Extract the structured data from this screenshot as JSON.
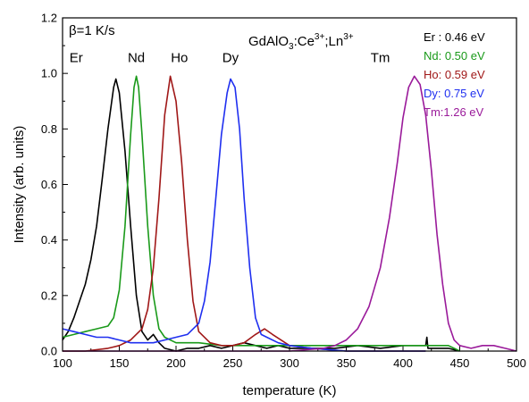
{
  "chart_data": {
    "type": "line",
    "xlabel": "temperature (K)",
    "ylabel": "Intensity (arb. units)",
    "xlim": [
      100,
      500
    ],
    "ylim": [
      0.0,
      1.2
    ],
    "xticks": [
      "100",
      "150",
      "200",
      "250",
      "300",
      "350",
      "400",
      "450",
      "500"
    ],
    "yticks": [
      "0.0",
      "0.2",
      "0.4",
      "0.6",
      "0.8",
      "1.0",
      "1.2"
    ],
    "annotations": {
      "rate_label": "β=1 K/s",
      "compound_main": "GdAlO",
      "compound_sub3": "3",
      "compound_mid": ":Ce",
      "compound_sup1": "3+",
      "compound_mid2": ";Ln",
      "compound_sup2": "3+"
    },
    "legend_position": "top-right",
    "legend": [
      {
        "text": "Er : 0.46 eV",
        "color": "#000000"
      },
      {
        "text": "Nd: 0.50 eV",
        "color": "#1a9a1a"
      },
      {
        "text": "Ho: 0.59 eV",
        "color": "#a01818"
      },
      {
        "text": "Dy: 0.75 eV",
        "color": "#1f2ff0"
      },
      {
        "text": "Tm:1.26 eV",
        "color": "#9a1a9a"
      }
    ],
    "series": [
      {
        "name": "Er",
        "color": "#000000",
        "label_x": 112,
        "label_y": 1.04,
        "points": [
          [
            100,
            0.04
          ],
          [
            105,
            0.07
          ],
          [
            110,
            0.12
          ],
          [
            115,
            0.18
          ],
          [
            120,
            0.24
          ],
          [
            125,
            0.33
          ],
          [
            130,
            0.45
          ],
          [
            135,
            0.62
          ],
          [
            140,
            0.8
          ],
          [
            145,
            0.95
          ],
          [
            147,
            0.98
          ],
          [
            150,
            0.93
          ],
          [
            155,
            0.72
          ],
          [
            160,
            0.45
          ],
          [
            165,
            0.2
          ],
          [
            170,
            0.07
          ],
          [
            175,
            0.04
          ],
          [
            180,
            0.06
          ],
          [
            185,
            0.03
          ],
          [
            190,
            0.01
          ],
          [
            200,
            0.0
          ],
          [
            210,
            0.01
          ],
          [
            220,
            0.01
          ],
          [
            230,
            0.02
          ],
          [
            240,
            0.01
          ],
          [
            250,
            0.02
          ],
          [
            260,
            0.03
          ],
          [
            270,
            0.02
          ],
          [
            280,
            0.01
          ],
          [
            290,
            0.02
          ],
          [
            300,
            0.01
          ],
          [
            320,
            0.01
          ],
          [
            340,
            0.01
          ],
          [
            360,
            0.02
          ],
          [
            380,
            0.01
          ],
          [
            400,
            0.02
          ],
          [
            420,
            0.02
          ],
          [
            421,
            0.05
          ],
          [
            422,
            0.01
          ],
          [
            430,
            0.01
          ],
          [
            440,
            0.01
          ],
          [
            450,
            0.0
          ]
        ]
      },
      {
        "name": "Nd",
        "color": "#1a9a1a",
        "label_x": 165,
        "label_y": 1.04,
        "points": [
          [
            100,
            0.05
          ],
          [
            110,
            0.06
          ],
          [
            120,
            0.07
          ],
          [
            130,
            0.08
          ],
          [
            140,
            0.09
          ],
          [
            145,
            0.12
          ],
          [
            150,
            0.22
          ],
          [
            155,
            0.45
          ],
          [
            160,
            0.78
          ],
          [
            163,
            0.95
          ],
          [
            165,
            0.99
          ],
          [
            167,
            0.95
          ],
          [
            170,
            0.78
          ],
          [
            175,
            0.45
          ],
          [
            180,
            0.2
          ],
          [
            185,
            0.08
          ],
          [
            190,
            0.05
          ],
          [
            200,
            0.03
          ],
          [
            220,
            0.03
          ],
          [
            240,
            0.02
          ],
          [
            260,
            0.02
          ],
          [
            280,
            0.02
          ],
          [
            300,
            0.02
          ],
          [
            320,
            0.02
          ],
          [
            340,
            0.02
          ],
          [
            360,
            0.02
          ],
          [
            380,
            0.02
          ],
          [
            400,
            0.02
          ],
          [
            420,
            0.02
          ],
          [
            440,
            0.02
          ],
          [
            450,
            0.0
          ]
        ]
      },
      {
        "name": "Ho",
        "color": "#a01818",
        "label_x": 203,
        "label_y": 1.04,
        "points": [
          [
            100,
            0.0
          ],
          [
            120,
            0.0
          ],
          [
            140,
            0.01
          ],
          [
            150,
            0.02
          ],
          [
            160,
            0.04
          ],
          [
            170,
            0.08
          ],
          [
            175,
            0.15
          ],
          [
            180,
            0.3
          ],
          [
            185,
            0.55
          ],
          [
            190,
            0.85
          ],
          [
            195,
            0.99
          ],
          [
            200,
            0.9
          ],
          [
            205,
            0.68
          ],
          [
            210,
            0.4
          ],
          [
            215,
            0.18
          ],
          [
            220,
            0.07
          ],
          [
            230,
            0.03
          ],
          [
            240,
            0.02
          ],
          [
            250,
            0.02
          ],
          [
            260,
            0.03
          ],
          [
            270,
            0.06
          ],
          [
            278,
            0.08
          ],
          [
            285,
            0.06
          ],
          [
            300,
            0.02
          ],
          [
            320,
            0.01
          ],
          [
            350,
            0.0
          ],
          [
            380,
            0.0
          ],
          [
            420,
            0.0
          ]
        ]
      },
      {
        "name": "Dy",
        "color": "#1f2ff0",
        "label_x": 248,
        "label_y": 1.04,
        "points": [
          [
            100,
            0.08
          ],
          [
            110,
            0.07
          ],
          [
            120,
            0.06
          ],
          [
            130,
            0.05
          ],
          [
            140,
            0.05
          ],
          [
            150,
            0.04
          ],
          [
            160,
            0.03
          ],
          [
            170,
            0.03
          ],
          [
            180,
            0.03
          ],
          [
            190,
            0.04
          ],
          [
            200,
            0.05
          ],
          [
            210,
            0.06
          ],
          [
            220,
            0.1
          ],
          [
            225,
            0.18
          ],
          [
            230,
            0.32
          ],
          [
            235,
            0.55
          ],
          [
            240,
            0.78
          ],
          [
            245,
            0.93
          ],
          [
            248,
            0.98
          ],
          [
            252,
            0.95
          ],
          [
            256,
            0.8
          ],
          [
            260,
            0.55
          ],
          [
            265,
            0.3
          ],
          [
            270,
            0.12
          ],
          [
            275,
            0.06
          ],
          [
            280,
            0.05
          ],
          [
            290,
            0.03
          ],
          [
            300,
            0.02
          ],
          [
            320,
            0.01
          ],
          [
            350,
            0.0
          ],
          [
            380,
            0.0
          ],
          [
            420,
            0.0
          ]
        ]
      },
      {
        "name": "Tm",
        "color": "#9a1a9a",
        "label_x": 380,
        "label_y": 1.04,
        "points": [
          [
            100,
            0.0
          ],
          [
            200,
            0.0
          ],
          [
            300,
            0.0
          ],
          [
            330,
            0.01
          ],
          [
            340,
            0.02
          ],
          [
            350,
            0.04
          ],
          [
            360,
            0.08
          ],
          [
            370,
            0.16
          ],
          [
            380,
            0.3
          ],
          [
            388,
            0.48
          ],
          [
            395,
            0.68
          ],
          [
            400,
            0.84
          ],
          [
            405,
            0.95
          ],
          [
            410,
            0.99
          ],
          [
            415,
            0.96
          ],
          [
            420,
            0.85
          ],
          [
            425,
            0.65
          ],
          [
            430,
            0.42
          ],
          [
            435,
            0.24
          ],
          [
            440,
            0.1
          ],
          [
            445,
            0.04
          ],
          [
            450,
            0.02
          ],
          [
            460,
            0.01
          ],
          [
            470,
            0.02
          ],
          [
            480,
            0.02
          ],
          [
            490,
            0.01
          ],
          [
            500,
            0.0
          ]
        ]
      }
    ]
  }
}
